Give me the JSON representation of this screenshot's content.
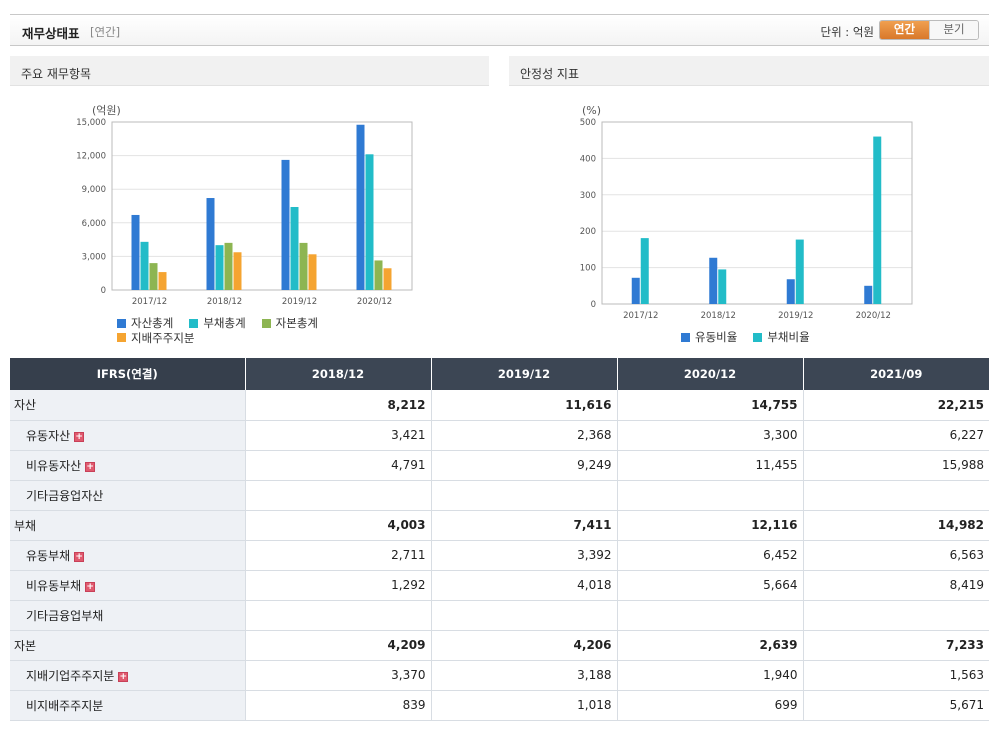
{
  "header": {
    "title": "재무상태표",
    "sub": "[연간]",
    "unit": "단위 : 억원",
    "toggle_annual": "연간",
    "toggle_quarter": "분기"
  },
  "panel1": {
    "title": "주요 재무항목"
  },
  "panel2": {
    "title": "안정성 지표"
  },
  "colors": {
    "blue": "#2f7ad3",
    "teal": "#22bcc8",
    "green": "#8db552",
    "orange": "#f5a431"
  },
  "chart_data": [
    {
      "type": "bar",
      "title": "주요 재무항목",
      "unit_label": "(억원)",
      "categories": [
        "2017/12",
        "2018/12",
        "2019/12",
        "2020/12"
      ],
      "ylim": [
        0,
        15000
      ],
      "yticks": [
        0,
        3000,
        6000,
        9000,
        12000,
        15000
      ],
      "ytick_labels": [
        "0",
        "3,000",
        "6,000",
        "9,000",
        "12,000",
        "15,000"
      ],
      "series": [
        {
          "name": "자산총계",
          "color": "#2f7ad3",
          "values": [
            6700,
            8212,
            11616,
            14755
          ]
        },
        {
          "name": "부채총계",
          "color": "#22bcc8",
          "values": [
            4300,
            4003,
            7411,
            12116
          ]
        },
        {
          "name": "자본총계",
          "color": "#8db552",
          "values": [
            2400,
            4209,
            4206,
            2639
          ]
        },
        {
          "name": "지배주주지분",
          "color": "#f5a431",
          "values": [
            1600,
            3370,
            3188,
            1940
          ]
        }
      ],
      "legend": "bottom-left",
      "grid": true
    },
    {
      "type": "bar",
      "title": "안정성 지표",
      "unit_label": "(%)",
      "categories": [
        "2017/12",
        "2018/12",
        "2019/12",
        "2020/12"
      ],
      "ylim": [
        0,
        500
      ],
      "yticks": [
        0,
        100,
        200,
        300,
        400,
        500
      ],
      "ytick_labels": [
        "0",
        "100",
        "200",
        "300",
        "400",
        "500"
      ],
      "series": [
        {
          "name": "유동비율",
          "color": "#2f7ad3",
          "values": [
            72,
            127,
            68,
            50
          ]
        },
        {
          "name": "부채비율",
          "color": "#22bcc8",
          "values": [
            181,
            95,
            177,
            460
          ]
        }
      ],
      "legend": "bottom-center",
      "grid": true
    }
  ],
  "table": {
    "header_label": "IFRS(연결)",
    "columns": [
      "2018/12",
      "2019/12",
      "2020/12",
      "2021/09"
    ],
    "rows": [
      {
        "label": "자산",
        "type": "main",
        "values": [
          "8,212",
          "11,616",
          "14,755",
          "22,215"
        ]
      },
      {
        "label": "유동자산",
        "type": "sub",
        "expand": true,
        "values": [
          "3,421",
          "2,368",
          "3,300",
          "6,227"
        ]
      },
      {
        "label": "비유동자산",
        "type": "sub",
        "expand": true,
        "values": [
          "4,791",
          "9,249",
          "11,455",
          "15,988"
        ]
      },
      {
        "label": "기타금융업자산",
        "type": "sub",
        "expand": false,
        "values": [
          "",
          "",
          "",
          ""
        ]
      },
      {
        "label": "부채",
        "type": "main",
        "values": [
          "4,003",
          "7,411",
          "12,116",
          "14,982"
        ]
      },
      {
        "label": "유동부채",
        "type": "sub",
        "expand": true,
        "values": [
          "2,711",
          "3,392",
          "6,452",
          "6,563"
        ]
      },
      {
        "label": "비유동부채",
        "type": "sub",
        "expand": true,
        "values": [
          "1,292",
          "4,018",
          "5,664",
          "8,419"
        ]
      },
      {
        "label": "기타금융업부채",
        "type": "sub",
        "expand": false,
        "values": [
          "",
          "",
          "",
          ""
        ]
      },
      {
        "label": "자본",
        "type": "main",
        "values": [
          "4,209",
          "4,206",
          "2,639",
          "7,233"
        ]
      },
      {
        "label": "지배기업주주지분",
        "type": "sub",
        "expand": true,
        "values": [
          "3,370",
          "3,188",
          "1,940",
          "1,563"
        ]
      },
      {
        "label": "비지배주주지분",
        "type": "sub",
        "expand": false,
        "values": [
          "839",
          "1,018",
          "699",
          "5,671"
        ]
      }
    ],
    "expand_symbol": "+"
  }
}
